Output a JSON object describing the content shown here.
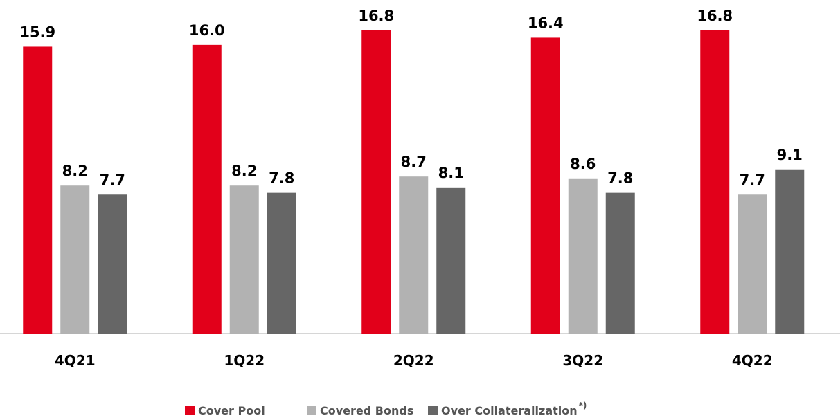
{
  "chart_data": {
    "type": "bar",
    "categories": [
      "4Q21",
      "1Q22",
      "2Q22",
      "3Q22",
      "4Q22"
    ],
    "series": [
      {
        "name": "Cover Pool",
        "color": "#e2001a",
        "values": [
          15.9,
          16.0,
          16.8,
          16.4,
          16.8
        ],
        "value_labels": [
          "15.9",
          "16.0",
          "16.8",
          "16.4",
          "16.8"
        ]
      },
      {
        "name": "Covered Bonds",
        "color": "#b2b2b2",
        "values": [
          8.2,
          8.2,
          8.7,
          8.6,
          7.7
        ],
        "value_labels": [
          "8.2",
          "8.2",
          "8.7",
          "8.6",
          "7.7"
        ]
      },
      {
        "name": "Over Collateralization",
        "color": "#666666",
        "values": [
          7.7,
          7.8,
          8.1,
          7.8,
          9.1
        ],
        "value_labels": [
          "7.7",
          "7.8",
          "8.1",
          "7.8",
          "9.1"
        ]
      }
    ],
    "legend_note": "*)",
    "legend": "bottom"
  }
}
